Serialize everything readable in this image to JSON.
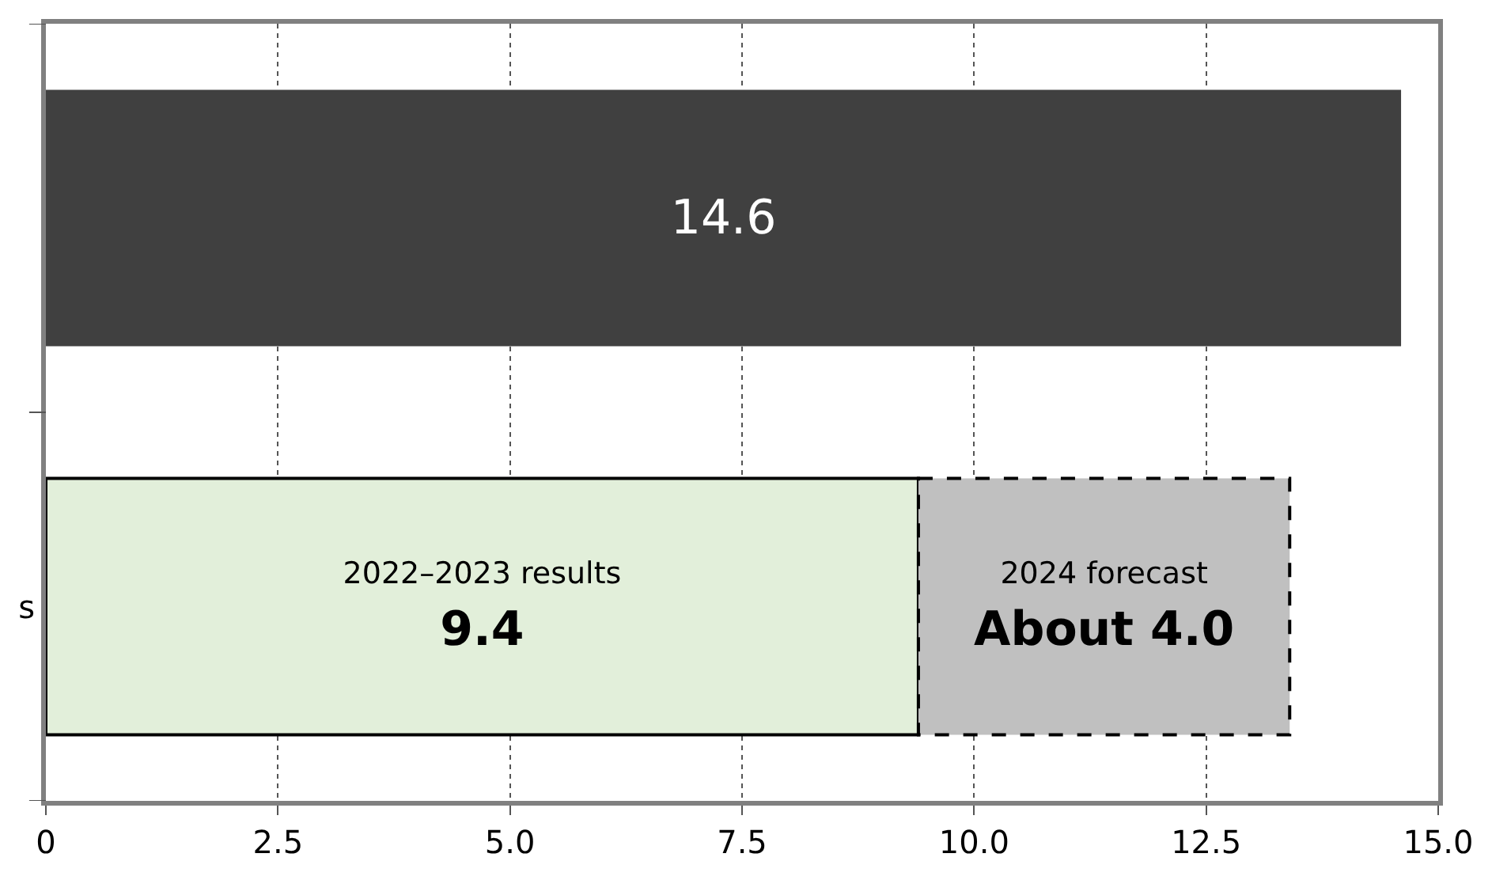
{
  "chart_data": {
    "type": "bar",
    "orientation": "horizontal",
    "stacked": true,
    "categories": [
      null,
      "s"
    ],
    "series": [
      {
        "color": "#404040",
        "values": [
          14.6,
          null
        ],
        "value_labels": [
          "14.6",
          null
        ],
        "line_style": "none"
      },
      {
        "name": "2022–2023 results",
        "color": "#e2efda",
        "values": [
          null,
          9.4
        ],
        "value_labels": [
          null,
          "9.4"
        ],
        "line_style": "solid"
      },
      {
        "name": "2024 forecast",
        "color": "#c0c0c0",
        "values": [
          null,
          4.0
        ],
        "value_labels": [
          null,
          "About 4.0"
        ],
        "line_style": "dashed"
      }
    ],
    "xlim": [
      0,
      15
    ],
    "xticks": [
      0,
      {
        "value": 2.5,
        "label": "2.5"
      },
      {
        "value": 5,
        "label": "5.0"
      },
      {
        "value": 7.5,
        "label": "7.5"
      },
      {
        "value": 10,
        "label": "10.0"
      },
      {
        "value": 12.5,
        "label": "12.5"
      },
      {
        "value": 15,
        "label": "15.0"
      }
    ],
    "grid": "x",
    "legend": false
  }
}
